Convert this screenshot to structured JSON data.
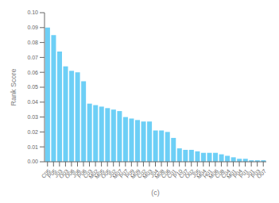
{
  "chart_data": {
    "type": "bar",
    "xlabel": "(c)",
    "ylabel": "Rank Score",
    "categories": [
      "C05",
      "P05",
      "J03",
      "O03",
      "O06",
      "J06",
      "P06",
      "C03",
      "M02",
      "M05",
      "O05",
      "J02",
      "M07",
      "P07",
      "P09",
      "M09",
      "C02",
      "M03",
      "J04",
      "M08",
      "C06",
      "C01",
      "P10",
      "C07",
      "O02",
      "J05",
      "M04",
      "H01",
      "M06",
      "C08",
      "C04",
      "M01",
      "P04",
      "P01",
      "J01",
      "P03",
      "O07"
    ],
    "values": [
      0.09,
      0.085,
      0.074,
      0.064,
      0.061,
      0.06,
      0.054,
      0.039,
      0.038,
      0.037,
      0.036,
      0.035,
      0.034,
      0.03,
      0.029,
      0.028,
      0.027,
      0.027,
      0.021,
      0.021,
      0.02,
      0.016,
      0.009,
      0.008,
      0.008,
      0.007,
      0.006,
      0.006,
      0.006,
      0.005,
      0.004,
      0.003,
      0.002,
      0.002,
      0.001,
      0.001,
      0.001
    ],
    "color": "#6dcff6",
    "ylim": [
      0,
      0.1
    ],
    "yticks": [
      {
        "value": 0,
        "label": "0.00"
      },
      {
        "value": 0.01,
        "label": "0.01"
      },
      {
        "value": 0.02,
        "label": "0.02"
      },
      {
        "value": 0.03,
        "label": "0.03"
      },
      {
        "value": 0.04,
        "label": "0.04"
      },
      {
        "value": 0.05,
        "label": "0.05"
      },
      {
        "value": 0.06,
        "label": "0.06"
      },
      {
        "value": 0.07,
        "label": "0.07"
      },
      {
        "value": 0.08,
        "label": "0.08"
      },
      {
        "value": 0.09,
        "label": "0.09"
      },
      {
        "value": 0.1,
        "label": "0.10"
      }
    ],
    "grid": false
  }
}
